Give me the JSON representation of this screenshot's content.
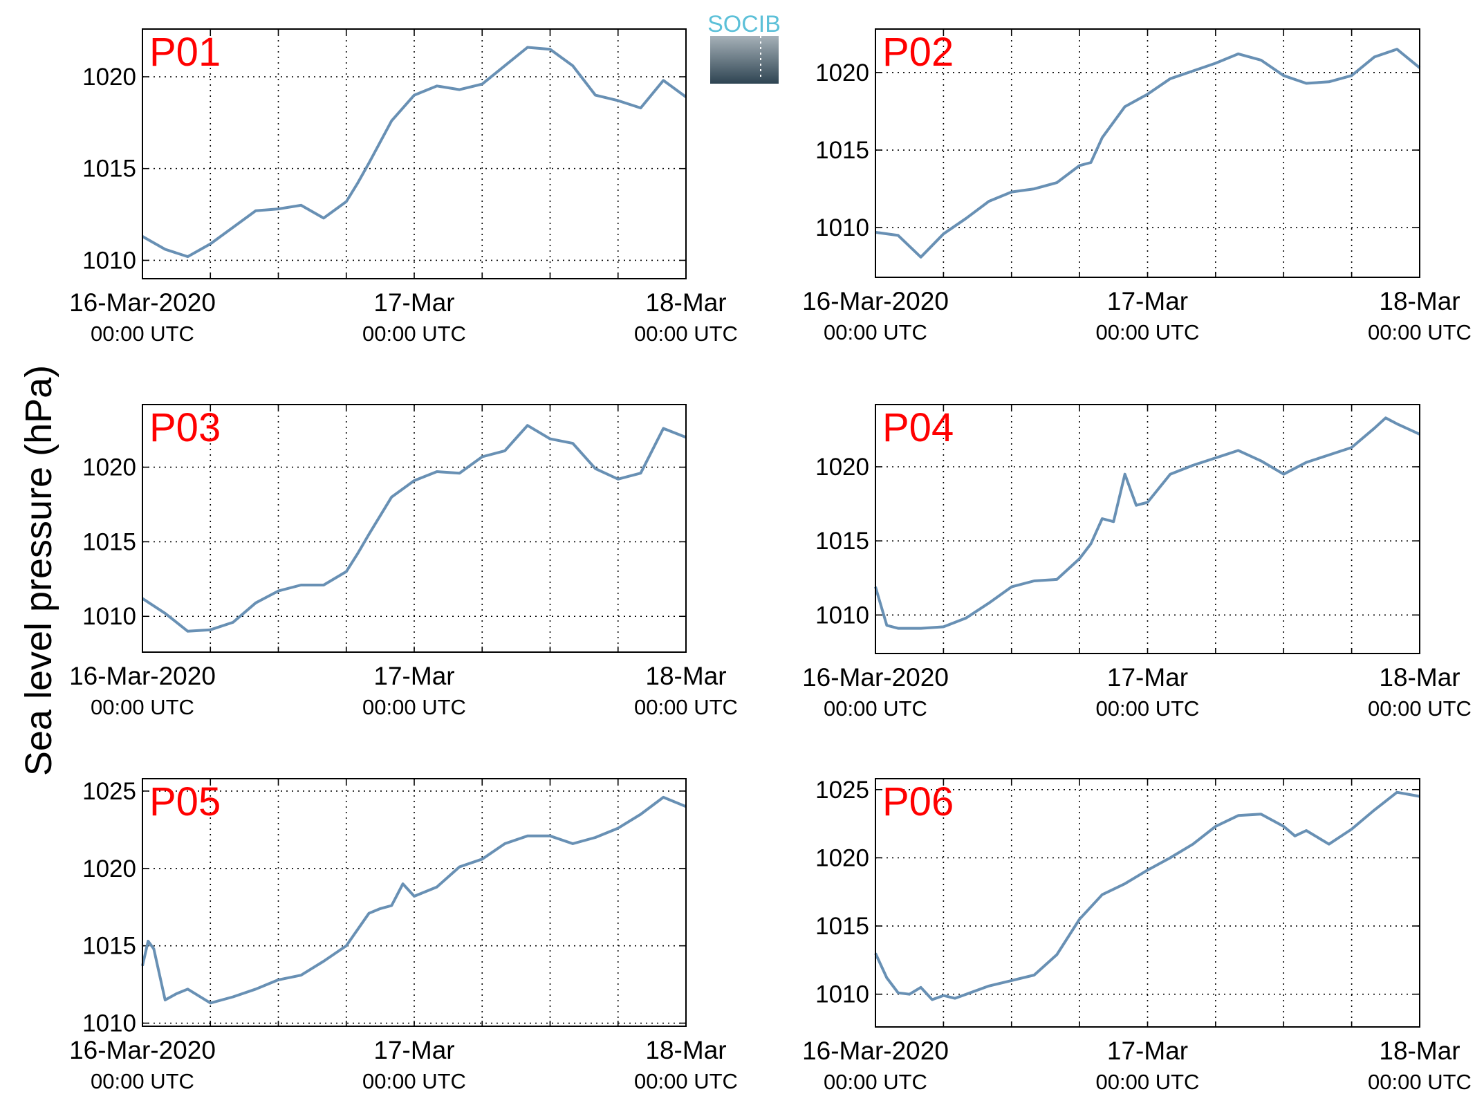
{
  "ylabel": "Sea level pressure (hPa)",
  "logo": {
    "text": "SOCIB",
    "colors": {
      "text": "#5cc0d8",
      "top": "#a6b1b8",
      "bottom": "#2e4452"
    }
  },
  "colors": {
    "line": "#6890b4",
    "label": "#ff0000",
    "axis": "#000000",
    "grid": "#000000"
  },
  "chart_data": [
    {
      "type": "line",
      "title": "P01",
      "ylim": [
        1009,
        1022.6
      ],
      "yticks": [
        1010,
        1015,
        1020
      ],
      "xlim": [
        "2020-03-16 00:00",
        "2020-03-18 00:00"
      ],
      "xticks": [
        {
          "x": "2020-03-16 00:00",
          "line1": "16-Mar-2020",
          "line2": "00:00 UTC"
        },
        {
          "x": "2020-03-17 00:00",
          "line1": "17-Mar",
          "line2": "00:00 UTC"
        },
        {
          "x": "2020-03-18 00:00",
          "line1": "18-Mar",
          "line2": "00:00 UTC"
        }
      ],
      "grid": true,
      "x": [
        "2020-03-16 00:00",
        "2020-03-16 02:00",
        "2020-03-16 04:00",
        "2020-03-16 06:00",
        "2020-03-16 08:00",
        "2020-03-16 10:00",
        "2020-03-16 12:00",
        "2020-03-16 14:00",
        "2020-03-16 16:00",
        "2020-03-16 18:00",
        "2020-03-16 19:00",
        "2020-03-16 20:00",
        "2020-03-16 22:00",
        "2020-03-17 00:00",
        "2020-03-17 02:00",
        "2020-03-17 04:00",
        "2020-03-17 06:00",
        "2020-03-17 08:00",
        "2020-03-17 10:00",
        "2020-03-17 12:00",
        "2020-03-17 14:00",
        "2020-03-17 16:00",
        "2020-03-17 18:00",
        "2020-03-17 20:00",
        "2020-03-17 22:00",
        "2020-03-18 00:00"
      ],
      "y": [
        1011.3,
        1010.6,
        1010.2,
        1010.9,
        1011.8,
        1012.7,
        1012.8,
        1013.0,
        1012.3,
        1013.2,
        1014.2,
        1015.3,
        1017.6,
        1019.0,
        1019.5,
        1019.3,
        1019.6,
        1020.6,
        1021.6,
        1021.5,
        1020.6,
        1019.0,
        1018.7,
        1018.3,
        1019.8,
        1018.9
      ]
    },
    {
      "type": "line",
      "title": "P02",
      "ylim": [
        1006.8,
        1022.8
      ],
      "yticks": [
        1010,
        1015,
        1020
      ],
      "xlim": [
        "2020-03-16 00:00",
        "2020-03-18 00:00"
      ],
      "xticks": [
        {
          "x": "2020-03-16 00:00",
          "line1": "16-Mar-2020",
          "line2": "00:00 UTC"
        },
        {
          "x": "2020-03-17 00:00",
          "line1": "17-Mar",
          "line2": "00:00 UTC"
        },
        {
          "x": "2020-03-18 00:00",
          "line1": "18-Mar",
          "line2": "00:00 UTC"
        }
      ],
      "grid": true,
      "x": [
        "2020-03-16 00:00",
        "2020-03-16 02:00",
        "2020-03-16 04:00",
        "2020-03-16 06:00",
        "2020-03-16 08:00",
        "2020-03-16 10:00",
        "2020-03-16 12:00",
        "2020-03-16 14:00",
        "2020-03-16 16:00",
        "2020-03-16 18:00",
        "2020-03-16 19:00",
        "2020-03-16 20:00",
        "2020-03-16 22:00",
        "2020-03-17 00:00",
        "2020-03-17 02:00",
        "2020-03-17 04:00",
        "2020-03-17 06:00",
        "2020-03-17 08:00",
        "2020-03-17 10:00",
        "2020-03-17 12:00",
        "2020-03-17 14:00",
        "2020-03-17 16:00",
        "2020-03-17 18:00",
        "2020-03-17 20:00",
        "2020-03-17 22:00",
        "2020-03-18 00:00"
      ],
      "y": [
        1009.7,
        1009.5,
        1008.1,
        1009.6,
        1010.6,
        1011.7,
        1012.3,
        1012.5,
        1012.9,
        1014.0,
        1014.2,
        1015.8,
        1017.8,
        1018.6,
        1019.6,
        1020.1,
        1020.6,
        1021.2,
        1020.8,
        1019.8,
        1019.3,
        1019.4,
        1019.8,
        1021.0,
        1021.5,
        1020.3
      ]
    },
    {
      "type": "line",
      "title": "P03",
      "ylim": [
        1007.6,
        1024.2
      ],
      "yticks": [
        1010,
        1015,
        1020
      ],
      "xlim": [
        "2020-03-16 00:00",
        "2020-03-18 00:00"
      ],
      "xticks": [
        {
          "x": "2020-03-16 00:00",
          "line1": "16-Mar-2020",
          "line2": "00:00 UTC"
        },
        {
          "x": "2020-03-17 00:00",
          "line1": "17-Mar",
          "line2": "00:00 UTC"
        },
        {
          "x": "2020-03-18 00:00",
          "line1": "18-Mar",
          "line2": "00:00 UTC"
        }
      ],
      "grid": true,
      "x": [
        "2020-03-16 00:00",
        "2020-03-16 02:00",
        "2020-03-16 04:00",
        "2020-03-16 06:00",
        "2020-03-16 08:00",
        "2020-03-16 10:00",
        "2020-03-16 12:00",
        "2020-03-16 14:00",
        "2020-03-16 16:00",
        "2020-03-16 18:00",
        "2020-03-16 19:00",
        "2020-03-16 20:00",
        "2020-03-16 22:00",
        "2020-03-17 00:00",
        "2020-03-17 02:00",
        "2020-03-17 04:00",
        "2020-03-17 06:00",
        "2020-03-17 08:00",
        "2020-03-17 10:00",
        "2020-03-17 12:00",
        "2020-03-17 14:00",
        "2020-03-17 16:00",
        "2020-03-17 18:00",
        "2020-03-17 20:00",
        "2020-03-17 22:00",
        "2020-03-18 00:00"
      ],
      "y": [
        1011.2,
        1010.2,
        1009.0,
        1009.1,
        1009.6,
        1010.9,
        1011.7,
        1012.1,
        1012.1,
        1013.0,
        1014.2,
        1015.5,
        1018.0,
        1019.1,
        1019.7,
        1019.6,
        1020.7,
        1021.1,
        1022.8,
        1021.9,
        1021.6,
        1019.9,
        1019.2,
        1019.6,
        1022.6,
        1022.0
      ]
    },
    {
      "type": "line",
      "title": "P04",
      "ylim": [
        1007.4,
        1024.2
      ],
      "yticks": [
        1010,
        1015,
        1020
      ],
      "xlim": [
        "2020-03-16 00:00",
        "2020-03-18 00:00"
      ],
      "xticks": [
        {
          "x": "2020-03-16 00:00",
          "line1": "16-Mar-2020",
          "line2": "00:00 UTC"
        },
        {
          "x": "2020-03-17 00:00",
          "line1": "17-Mar",
          "line2": "00:00 UTC"
        },
        {
          "x": "2020-03-18 00:00",
          "line1": "18-Mar",
          "line2": "00:00 UTC"
        }
      ],
      "grid": true,
      "x": [
        "2020-03-16 00:00",
        "2020-03-16 01:00",
        "2020-03-16 02:00",
        "2020-03-16 04:00",
        "2020-03-16 06:00",
        "2020-03-16 08:00",
        "2020-03-16 10:00",
        "2020-03-16 12:00",
        "2020-03-16 14:00",
        "2020-03-16 16:00",
        "2020-03-16 18:00",
        "2020-03-16 19:00",
        "2020-03-16 20:00",
        "2020-03-16 21:00",
        "2020-03-16 22:00",
        "2020-03-16 23:00",
        "2020-03-17 00:00",
        "2020-03-17 02:00",
        "2020-03-17 04:00",
        "2020-03-17 06:00",
        "2020-03-17 08:00",
        "2020-03-17 10:00",
        "2020-03-17 12:00",
        "2020-03-17 14:00",
        "2020-03-17 16:00",
        "2020-03-17 18:00",
        "2020-03-17 20:00",
        "2020-03-17 21:00",
        "2020-03-17 22:00",
        "2020-03-18 00:00"
      ],
      "y": [
        1011.9,
        1009.3,
        1009.1,
        1009.1,
        1009.2,
        1009.8,
        1010.8,
        1011.9,
        1012.3,
        1012.4,
        1013.8,
        1014.8,
        1016.5,
        1016.3,
        1019.5,
        1017.4,
        1017.6,
        1019.5,
        1020.1,
        1020.6,
        1021.1,
        1020.4,
        1019.5,
        1020.3,
        1020.8,
        1021.3,
        1022.6,
        1023.3,
        1022.9,
        1022.2
      ]
    },
    {
      "type": "line",
      "title": "P05",
      "ylim": [
        1009.8,
        1025.8
      ],
      "yticks": [
        1010,
        1015,
        1020,
        1025
      ],
      "xlim": [
        "2020-03-16 00:00",
        "2020-03-18 00:00"
      ],
      "xticks": [
        {
          "x": "2020-03-16 00:00",
          "line1": "16-Mar-2020",
          "line2": "00:00 UTC"
        },
        {
          "x": "2020-03-17 00:00",
          "line1": "17-Mar",
          "line2": "00:00 UTC"
        },
        {
          "x": "2020-03-18 00:00",
          "line1": "18-Mar",
          "line2": "00:00 UTC"
        }
      ],
      "grid": true,
      "x": [
        "2020-03-16 00:00",
        "2020-03-16 00:30",
        "2020-03-16 01:00",
        "2020-03-16 02:00",
        "2020-03-16 03:00",
        "2020-03-16 04:00",
        "2020-03-16 06:00",
        "2020-03-16 08:00",
        "2020-03-16 10:00",
        "2020-03-16 12:00",
        "2020-03-16 14:00",
        "2020-03-16 16:00",
        "2020-03-16 18:00",
        "2020-03-16 20:00",
        "2020-03-16 21:00",
        "2020-03-16 22:00",
        "2020-03-16 23:00",
        "2020-03-17 00:00",
        "2020-03-17 02:00",
        "2020-03-17 04:00",
        "2020-03-17 06:00",
        "2020-03-17 08:00",
        "2020-03-17 10:00",
        "2020-03-17 12:00",
        "2020-03-17 14:00",
        "2020-03-17 16:00",
        "2020-03-17 18:00",
        "2020-03-17 20:00",
        "2020-03-17 22:00",
        "2020-03-18 00:00"
      ],
      "y": [
        1013.7,
        1015.3,
        1014.8,
        1011.5,
        1011.9,
        1012.2,
        1011.3,
        1011.7,
        1012.2,
        1012.8,
        1013.1,
        1014.0,
        1015.0,
        1017.1,
        1017.4,
        1017.6,
        1019.0,
        1018.2,
        1018.8,
        1020.1,
        1020.6,
        1021.6,
        1022.1,
        1022.1,
        1021.6,
        1022.0,
        1022.6,
        1023.5,
        1024.6,
        1024.0
      ]
    },
    {
      "type": "line",
      "title": "P06",
      "ylim": [
        1007.6,
        1025.8
      ],
      "yticks": [
        1010,
        1015,
        1020,
        1025
      ],
      "xlim": [
        "2020-03-16 00:00",
        "2020-03-18 00:00"
      ],
      "xticks": [
        {
          "x": "2020-03-16 00:00",
          "line1": "16-Mar-2020",
          "line2": "00:00 UTC"
        },
        {
          "x": "2020-03-17 00:00",
          "line1": "17-Mar",
          "line2": "00:00 UTC"
        },
        {
          "x": "2020-03-18 00:00",
          "line1": "18-Mar",
          "line2": "00:00 UTC"
        }
      ],
      "grid": true,
      "x": [
        "2020-03-16 00:00",
        "2020-03-16 01:00",
        "2020-03-16 02:00",
        "2020-03-16 03:00",
        "2020-03-16 04:00",
        "2020-03-16 05:00",
        "2020-03-16 06:00",
        "2020-03-16 07:00",
        "2020-03-16 08:00",
        "2020-03-16 10:00",
        "2020-03-16 12:00",
        "2020-03-16 14:00",
        "2020-03-16 16:00",
        "2020-03-16 18:00",
        "2020-03-16 20:00",
        "2020-03-16 22:00",
        "2020-03-17 00:00",
        "2020-03-17 02:00",
        "2020-03-17 04:00",
        "2020-03-17 06:00",
        "2020-03-17 08:00",
        "2020-03-17 10:00",
        "2020-03-17 12:00",
        "2020-03-17 13:00",
        "2020-03-17 14:00",
        "2020-03-17 16:00",
        "2020-03-17 18:00",
        "2020-03-17 20:00",
        "2020-03-17 22:00",
        "2020-03-18 00:00"
      ],
      "y": [
        1013.0,
        1011.2,
        1010.1,
        1010.0,
        1010.5,
        1009.6,
        1009.9,
        1009.7,
        1010.0,
        1010.6,
        1011.0,
        1011.4,
        1012.9,
        1015.5,
        1017.3,
        1018.1,
        1019.1,
        1020.0,
        1021.0,
        1022.3,
        1023.1,
        1023.2,
        1022.3,
        1021.6,
        1022.0,
        1021.0,
        1022.1,
        1023.5,
        1024.8,
        1024.5
      ]
    }
  ]
}
